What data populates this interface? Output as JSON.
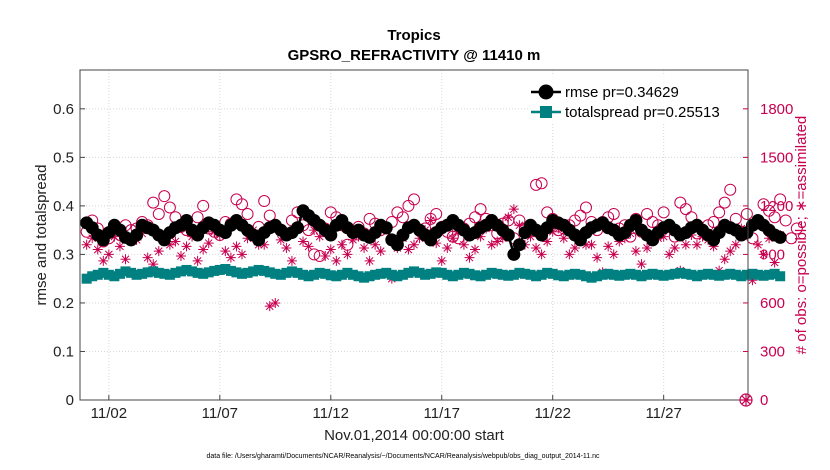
{
  "chart_data": {
    "type": "line",
    "title": "Tropics",
    "subtitle": "GPSRO_REFRACTIVITY @ 11410 m",
    "xlabel": "Nov.01,2014 00:00:00 start",
    "ylabel_left": "rmse and totalspread",
    "ylabel_right": "# of obs: o=possible; ∗=assimilated",
    "footnote": "data file: /Users/gharamti/Documents/NCAR/Reanalysis/~/Documents/NCAR/Reanalysis/webpub/obs_diag_output_2014-11.nc",
    "x_range": [
      0.7,
      30.8
    ],
    "ylim_left": [
      0,
      0.68
    ],
    "ylim_right": [
      0,
      2040
    ],
    "x_ticks": [
      {
        "value": 2,
        "label": "11/02"
      },
      {
        "value": 7,
        "label": "11/07"
      },
      {
        "value": 12,
        "label": "11/12"
      },
      {
        "value": 17,
        "label": "11/17"
      },
      {
        "value": 22,
        "label": "11/22"
      },
      {
        "value": 27,
        "label": "11/27"
      }
    ],
    "left_ticks": [
      {
        "value": 0,
        "label": "0"
      },
      {
        "value": 0.1,
        "label": "0.1"
      },
      {
        "value": 0.2,
        "label": "0.2"
      },
      {
        "value": 0.3,
        "label": "0.3"
      },
      {
        "value": 0.4,
        "label": "0.4"
      },
      {
        "value": 0.5,
        "label": "0.5"
      },
      {
        "value": 0.6,
        "label": "0.6"
      }
    ],
    "right_ticks": [
      {
        "value": 0,
        "label": "0"
      },
      {
        "value": 300,
        "label": "300"
      },
      {
        "value": 600,
        "label": "600"
      },
      {
        "value": 900,
        "label": "900"
      },
      {
        "value": 1200,
        "label": "1200"
      },
      {
        "value": 1500,
        "label": "1500"
      },
      {
        "value": 1800,
        "label": "1800"
      }
    ],
    "grid": "dotted",
    "legend_position": "top-right",
    "x_start": 1.0,
    "x_step": 0.25,
    "series": [
      {
        "name": "rmse pr=0.34629",
        "axis": "left",
        "color": "#000000",
        "marker": "circle",
        "values": [
          0.365,
          0.355,
          0.34,
          0.33,
          0.345,
          0.36,
          0.35,
          0.335,
          0.33,
          0.34,
          0.36,
          0.355,
          0.35,
          0.34,
          0.33,
          0.345,
          0.355,
          0.36,
          0.37,
          0.35,
          0.34,
          0.355,
          0.365,
          0.36,
          0.35,
          0.345,
          0.36,
          0.37,
          0.36,
          0.35,
          0.34,
          0.33,
          0.345,
          0.355,
          0.36,
          0.35,
          0.34,
          0.345,
          0.355,
          0.39,
          0.38,
          0.37,
          0.36,
          0.35,
          0.34,
          0.36,
          0.37,
          0.355,
          0.345,
          0.35,
          0.34,
          0.335,
          0.345,
          0.36,
          0.355,
          0.33,
          0.32,
          0.34,
          0.355,
          0.36,
          0.35,
          0.34,
          0.33,
          0.345,
          0.355,
          0.36,
          0.37,
          0.36,
          0.35,
          0.34,
          0.345,
          0.355,
          0.36,
          0.37,
          0.36,
          0.35,
          0.34,
          0.3,
          0.32,
          0.345,
          0.36,
          0.35,
          0.34,
          0.355,
          0.37,
          0.365,
          0.36,
          0.35,
          0.34,
          0.33,
          0.345,
          0.355,
          0.36,
          0.365,
          0.355,
          0.35,
          0.34,
          0.345,
          0.36,
          0.37,
          0.35,
          0.34,
          0.33,
          0.345,
          0.355,
          0.36,
          0.35,
          0.34,
          0.345,
          0.355,
          0.36,
          0.35,
          0.34,
          0.33,
          0.345,
          0.36,
          0.355,
          0.35,
          0.34,
          0.345,
          0.36,
          0.37,
          0.36,
          0.35,
          0.34,
          0.335
        ]
      },
      {
        "name": "totalspread pr=0.25513",
        "axis": "left",
        "color": "#008080",
        "marker": "square",
        "values": [
          0.25,
          0.255,
          0.258,
          0.262,
          0.258,
          0.255,
          0.26,
          0.265,
          0.262,
          0.258,
          0.26,
          0.263,
          0.265,
          0.262,
          0.26,
          0.258,
          0.262,
          0.265,
          0.268,
          0.265,
          0.262,
          0.26,
          0.263,
          0.266,
          0.268,
          0.27,
          0.266,
          0.263,
          0.26,
          0.262,
          0.265,
          0.268,
          0.266,
          0.263,
          0.26,
          0.258,
          0.262,
          0.265,
          0.262,
          0.258,
          0.255,
          0.258,
          0.262,
          0.26,
          0.257,
          0.255,
          0.258,
          0.262,
          0.258,
          0.255,
          0.252,
          0.255,
          0.258,
          0.26,
          0.262,
          0.258,
          0.255,
          0.258,
          0.262,
          0.265,
          0.262,
          0.258,
          0.26,
          0.263,
          0.262,
          0.258,
          0.255,
          0.258,
          0.262,
          0.26,
          0.257,
          0.255,
          0.258,
          0.262,
          0.26,
          0.258,
          0.256,
          0.258,
          0.262,
          0.26,
          0.258,
          0.255,
          0.258,
          0.262,
          0.26,
          0.257,
          0.255,
          0.258,
          0.26,
          0.258,
          0.255,
          0.252,
          0.255,
          0.258,
          0.26,
          0.258,
          0.256,
          0.258,
          0.26,
          0.258,
          0.255,
          0.258,
          0.26,
          0.258,
          0.256,
          0.258,
          0.26,
          0.262,
          0.26,
          0.258,
          0.255,
          0.258,
          0.26,
          0.258,
          0.256,
          0.258,
          0.26,
          0.258,
          0.255,
          0.258,
          0.26,
          0.258,
          0.256,
          0.258,
          0.26,
          0.255
        ]
      },
      {
        "name": "possible obs",
        "axis": "right",
        "color": "#c8004f",
        "marker": "open-circle",
        "values": [
          1040,
          1110,
          1060,
          980,
          1000,
          1070,
          1020,
          1080,
          1050,
          1060,
          1100,
          1080,
          1220,
          1150,
          1260,
          1190,
          1130,
          1070,
          1050,
          1040,
          1130,
          1200,
          1060,
          1040,
          1020,
          1100,
          1090,
          1240,
          1210,
          1150,
          1020,
          1070,
          1230,
          1140,
          1070,
          1050,
          1030,
          1110,
          1160,
          1080,
          1050,
          900,
          890,
          1060,
          1160,
          1130,
          1080,
          960,
          1040,
          1070,
          1030,
          1120,
          1090,
          1050,
          1060,
          1100,
          1160,
          1130,
          1200,
          1240,
          1050,
          1060,
          1120,
          1150,
          1070,
          1040,
          1010,
          1000,
          1060,
          1090,
          1130,
          1180,
          1120,
          1080,
          1030,
          1090,
          1110,
          1000,
          1110,
          1060,
          1050,
          1330,
          1340,
          1160,
          1120,
          1050,
          1060,
          1080,
          1110,
          1140,
          1190,
          1100,
          1050,
          1100,
          1130,
          1150,
          1060,
          1080,
          1010,
          1120,
          1040,
          1150,
          1100,
          1080,
          1160,
          1070,
          1010,
          1220,
          1180,
          1130,
          1030,
          1050,
          1080,
          1100,
          1160,
          1220,
          1300,
          1120,
          1040,
          1150,
          1000,
          1090,
          1210,
          1170,
          1130,
          1240,
          1110,
          1000,
          1060
        ]
      },
      {
        "name": "assimilated obs",
        "axis": "right",
        "color": "#c8004f",
        "marker": "asterisk",
        "values": [
          960,
          1000,
          930,
          860,
          900,
          1010,
          950,
          870,
          980,
          990,
          1030,
          880,
          840,
          920,
          990,
          960,
          980,
          890,
          950,
          1010,
          860,
          930,
          970,
          1040,
          1020,
          920,
          880,
          950,
          900,
          1000,
          1050,
          960,
          960,
          580,
          600,
          990,
          940,
          860,
          1070,
          980,
          950,
          1050,
          1010,
          890,
          930,
          860,
          960,
          900,
          990,
          1010,
          940,
          860,
          960,
          920,
          1060,
          750,
          940,
          1000,
          930,
          960,
          1000,
          1050,
          1110,
          970,
          860,
          940,
          1000,
          1040,
          960,
          880,
          930,
          1010,
          1060,
          960,
          980,
          1000,
          1130,
          1180,
          1080,
          960,
          1010,
          940,
          900,
          980,
          1040,
          1060,
          1000,
          900,
          940,
          990,
          960,
          960,
          880,
          790,
          950,
          900,
          980,
          1000,
          1030,
          920,
          840,
          940,
          990,
          1000,
          1010,
          900,
          940,
          800,
          960,
          1020,
          960,
          1010,
          990,
          950,
          800,
          870,
          920,
          960,
          1060,
          1020,
          740,
          960,
          900,
          1000,
          850,
          1020
        ]
      }
    ]
  }
}
